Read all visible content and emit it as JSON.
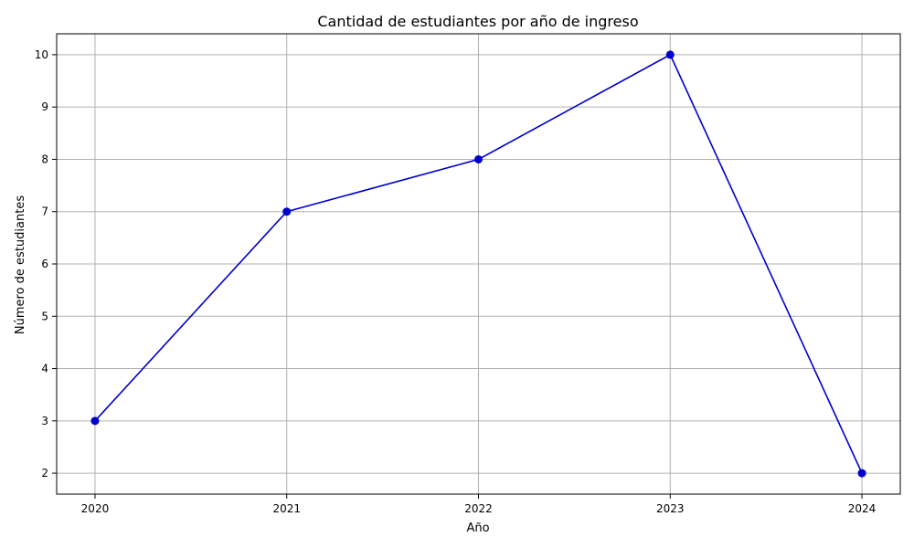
{
  "chart_data": {
    "type": "line",
    "title": "Cantidad de estudiantes por año de ingreso",
    "xlabel": "Año",
    "ylabel": "Número de estudiantes",
    "x": [
      2020,
      2021,
      2022,
      2023,
      2024
    ],
    "series": [
      {
        "values": [
          3,
          7,
          8,
          10,
          2
        ],
        "color": "#0000cc",
        "marker": "circle"
      }
    ],
    "xticks": [
      "2020",
      "2021",
      "2022",
      "2023",
      "2024"
    ],
    "yticks": [
      2,
      3,
      4,
      5,
      6,
      7,
      8,
      9,
      10
    ],
    "xlim": [
      2019.8,
      2024.2
    ],
    "ylim": [
      1.6,
      10.4
    ],
    "grid": true,
    "legend": "none"
  }
}
